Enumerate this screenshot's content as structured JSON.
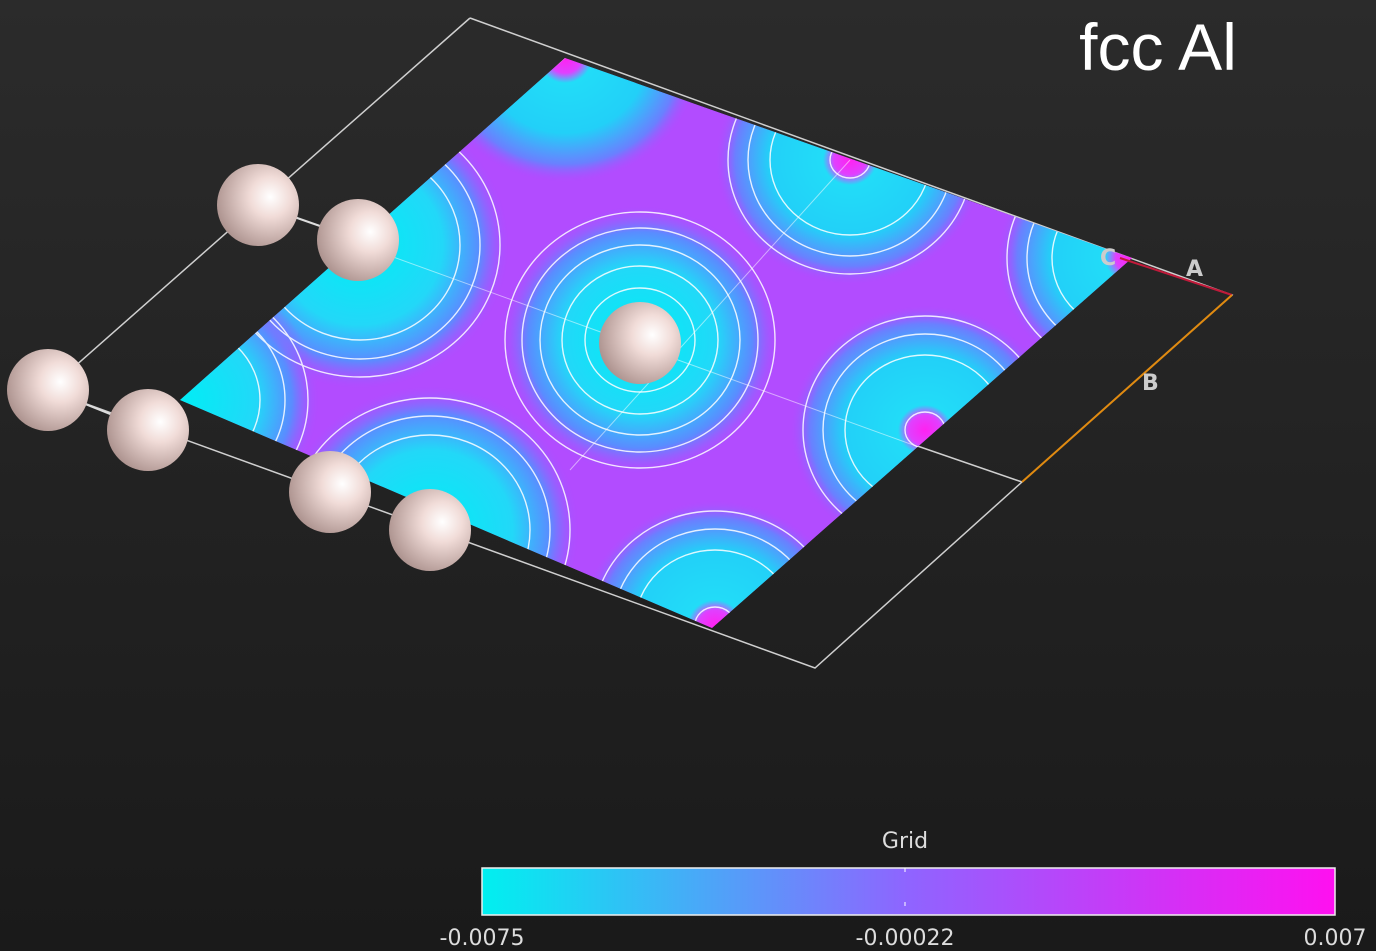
{
  "title": "fcc Al",
  "axes": {
    "a": "A",
    "b": "B",
    "c": "C"
  },
  "colorbar": {
    "title": "Grid",
    "min_label": "-0.0075",
    "mid_label": "-0.00022",
    "max_label": "0.007"
  }
}
